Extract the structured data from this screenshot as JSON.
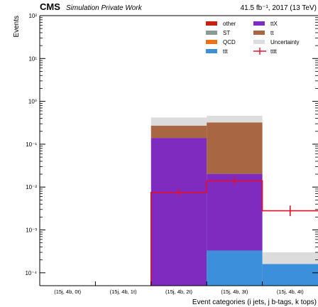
{
  "header": {
    "cms": "CMS",
    "subtitle": "Simulation Private Work",
    "lumi": "41.5 fb⁻¹, 2017 (13 TeV)"
  },
  "chart_data": {
    "type": "bar",
    "stacked": true,
    "log_y": true,
    "ylim": [
      5e-05,
      100
    ],
    "xlabel": "Event categories (i jets, j b-tags, k tops)",
    "ylabel": "Events",
    "categories": [
      "(15j, 4b, 0t)",
      "(15j, 4b, 1t)",
      "(15j, 4b, 2t)",
      "(15j, 4b, 3t)",
      "(15j, 4b, 4t)"
    ],
    "y_ticks": [
      {
        "value": 0.0001,
        "label": "10⁻⁴"
      },
      {
        "value": 0.001,
        "label": "10⁻³"
      },
      {
        "value": 0.01,
        "label": "10⁻²"
      },
      {
        "value": 0.1,
        "label": "10⁻¹"
      },
      {
        "value": 1,
        "label": "10⁰"
      },
      {
        "value": 10,
        "label": "10¹"
      },
      {
        "value": 100,
        "label": "10²"
      }
    ],
    "stack_order": [
      "ttt",
      "ttX",
      "tt"
    ],
    "series": [
      {
        "name": "other",
        "color": "#c8210f",
        "values": [
          0,
          0,
          0,
          0,
          0
        ]
      },
      {
        "name": "ttX",
        "color": "#7f2bbf",
        "values": [
          0,
          0,
          0.14,
          0.02,
          0
        ]
      },
      {
        "name": "ST",
        "color": "#8c9a96",
        "values": [
          0,
          0,
          0,
          0,
          0
        ]
      },
      {
        "name": "tt",
        "color": "#a86742",
        "values": [
          0,
          0,
          0.13,
          0.3,
          0
        ]
      },
      {
        "name": "QCD",
        "color": "#e8731a",
        "values": [
          0,
          0,
          0,
          0,
          0
        ]
      },
      {
        "name": "ttt",
        "color": "#3c8fdb",
        "values": [
          0,
          0,
          0,
          0.00033,
          0.00016
        ]
      }
    ],
    "uncertainty": {
      "name": "Uncertainty",
      "color": "#dcdcdc",
      "upper": [
        0,
        0,
        0.42,
        0.46,
        0.0003
      ]
    },
    "signal": {
      "name": "tttt",
      "color": "#e0102a",
      "values": [
        0,
        0,
        0.0075,
        0.014,
        0.0028
      ],
      "err_low": [
        0,
        0,
        0.0061,
        0.0112,
        0.0021
      ],
      "err_high": [
        0,
        0,
        0.0092,
        0.0175,
        0.0037
      ]
    },
    "legend": {
      "placement": "top-right",
      "entries": [
        {
          "label": "other",
          "color": "#c8210f",
          "kind": "box"
        },
        {
          "label": "ttX",
          "color": "#7f2bbf",
          "kind": "box"
        },
        {
          "label": "ST",
          "color": "#8c9a96",
          "kind": "box"
        },
        {
          "label": "tt",
          "color": "#a86742",
          "kind": "box"
        },
        {
          "label": "QCD",
          "color": "#e8731a",
          "kind": "box"
        },
        {
          "label": "Uncertainty",
          "color": "#dcdcdc",
          "kind": "box"
        },
        {
          "label": "ttt",
          "color": "#3c8fdb",
          "kind": "box"
        },
        {
          "label": "tttt",
          "color": "#e0102a",
          "kind": "cross"
        }
      ]
    }
  }
}
